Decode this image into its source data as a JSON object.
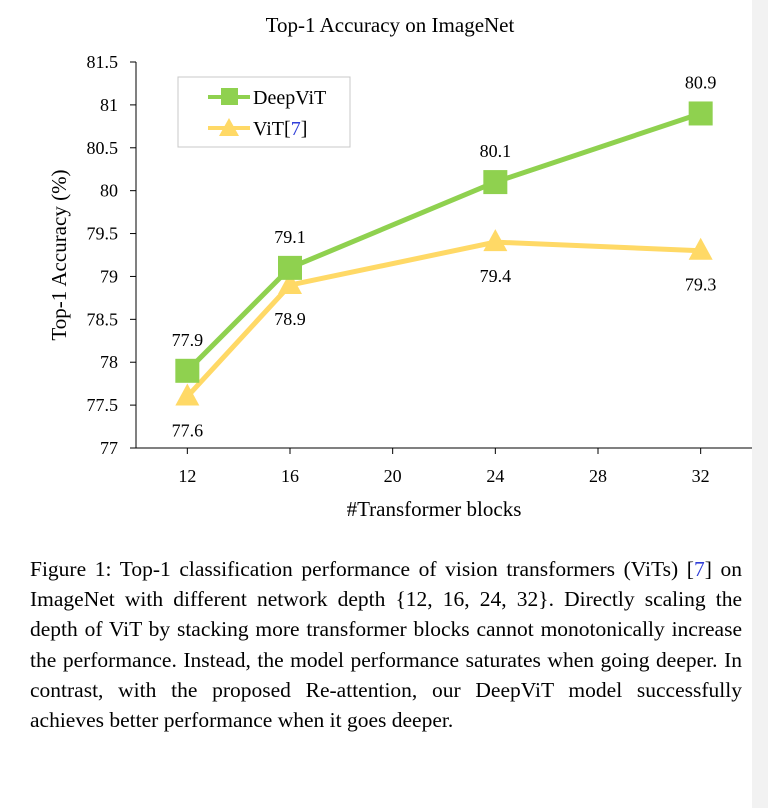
{
  "chart_data": {
    "type": "line",
    "title": "Top-1 Accuracy on ImageNet",
    "xlabel": "#Transformer blocks",
    "ylabel": "Top-1 Accuracy (%)",
    "x": [
      12,
      16,
      24,
      32
    ],
    "xticks": [
      "12",
      "16",
      "20",
      "24",
      "28",
      "32"
    ],
    "xlim": [
      10,
      34
    ],
    "yticks": [
      "77",
      "77.5",
      "78",
      "78.5",
      "79",
      "79.5",
      "80",
      "80.5",
      "81",
      "81.5"
    ],
    "ylim": [
      77,
      81.5
    ],
    "legend_position": "top-left",
    "series": [
      {
        "name": "DeepViT",
        "legend_label": "DeepViT",
        "color": "#8fd14f",
        "marker": "square",
        "values": [
          77.9,
          79.1,
          80.1,
          80.9
        ],
        "labels": [
          "77.9",
          "79.1",
          "80.1",
          "80.9"
        ],
        "label_side": [
          "above",
          "above",
          "above",
          "above"
        ]
      },
      {
        "name": "ViT",
        "legend_label": "ViT[",
        "legend_cite": "7",
        "legend_close": "]",
        "color": "#ffd966",
        "marker": "triangle",
        "values": [
          77.6,
          78.9,
          79.4,
          79.3
        ],
        "labels": [
          "77.6",
          "78.9",
          "79.4",
          "79.3"
        ],
        "label_side": [
          "below",
          "below",
          "below",
          "below"
        ]
      }
    ]
  },
  "caption": {
    "part1": "Figure 1: Top-1 classification performance of vision transformers (ViTs) [",
    "cite": "7",
    "part2": "] on ImageNet with different network depth {12, 16, 24, 32}. Directly scaling the depth of ViT by stacking more transformer blocks cannot monotonically increase the performance. Instead, the model performance saturates when going deeper. In contrast, with the proposed Re-attention, our DeepViT model successfully achieves better performance when it goes deeper."
  }
}
